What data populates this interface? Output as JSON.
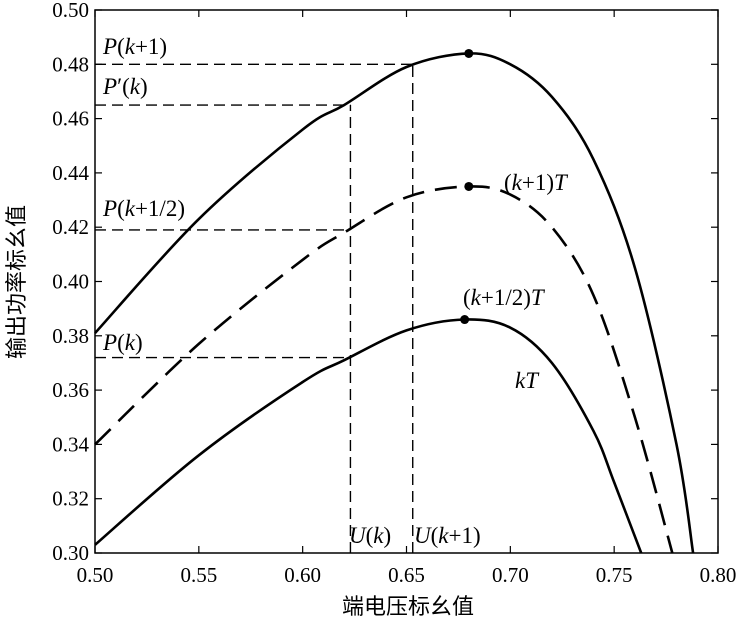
{
  "chart_data": {
    "type": "line",
    "xlabel": "端电压标幺值",
    "ylabel": "输出功率标幺值",
    "xlim": [
      0.5,
      0.8
    ],
    "ylim": [
      0.3,
      0.5
    ],
    "grid": false,
    "x_ticks": [
      0.5,
      0.55,
      0.6,
      0.65,
      0.7,
      0.75,
      0.8
    ],
    "x_tick_labels": [
      "0.50",
      "0.55",
      "0.60",
      "0.65",
      "0.70",
      "0.75",
      "0.80"
    ],
    "y_ticks": [
      0.3,
      0.32,
      0.34,
      0.36,
      0.38,
      0.4,
      0.42,
      0.44,
      0.46,
      0.48,
      0.5
    ],
    "y_tick_labels": [
      "0.30",
      "0.32",
      "0.34",
      "0.36",
      "0.38",
      "0.40",
      "0.42",
      "0.44",
      "0.46",
      "0.48",
      "0.50"
    ],
    "series": [
      {
        "name": "kT",
        "style": "solid",
        "x": [
          0.5,
          0.55,
          0.6,
          0.62,
          0.65,
          0.678,
          0.7,
          0.72,
          0.74,
          0.75,
          0.763
        ],
        "y": [
          0.303,
          0.336,
          0.363,
          0.371,
          0.382,
          0.386,
          0.383,
          0.37,
          0.345,
          0.326,
          0.3
        ],
        "peak": {
          "x": 0.678,
          "y": 0.386
        }
      },
      {
        "name": "(k+1/2)T",
        "style": "dashed",
        "x": [
          0.5,
          0.55,
          0.6,
          0.62,
          0.65,
          0.68,
          0.7,
          0.72,
          0.74,
          0.76,
          0.778
        ],
        "y": [
          0.34,
          0.377,
          0.408,
          0.418,
          0.431,
          0.435,
          0.432,
          0.42,
          0.395,
          0.35,
          0.3
        ],
        "peak": {
          "x": 0.68,
          "y": 0.435
        }
      },
      {
        "name": "(k+1)T",
        "style": "solid",
        "x": [
          0.5,
          0.55,
          0.6,
          0.62,
          0.65,
          0.68,
          0.7,
          0.72,
          0.74,
          0.76,
          0.78,
          0.788
        ],
        "y": [
          0.381,
          0.423,
          0.456,
          0.465,
          0.479,
          0.484,
          0.48,
          0.468,
          0.445,
          0.405,
          0.34,
          0.3
        ],
        "peak": {
          "x": 0.68,
          "y": 0.484
        }
      }
    ],
    "reference_lines": {
      "horizontal": [
        {
          "label": "P(k+1)",
          "y": 0.48,
          "x_end": 0.653
        },
        {
          "label": "P′(k)",
          "y": 0.465,
          "x_end": 0.623
        },
        {
          "label": "P(k+1/2)",
          "y": 0.419,
          "x_end": 0.623
        },
        {
          "label": "P(k)",
          "y": 0.372,
          "x_end": 0.623
        }
      ],
      "vertical": [
        {
          "label": "U(k)",
          "x": 0.623,
          "y_end": 0.465
        },
        {
          "label": "U(k+1)",
          "x": 0.653,
          "y_end": 0.48
        }
      ]
    },
    "annotations": [
      {
        "text": "(k+1)T",
        "target": "upper"
      },
      {
        "text": "(k+1/2)T",
        "target": "middle"
      },
      {
        "text": "kT",
        "target": "lower"
      }
    ]
  }
}
